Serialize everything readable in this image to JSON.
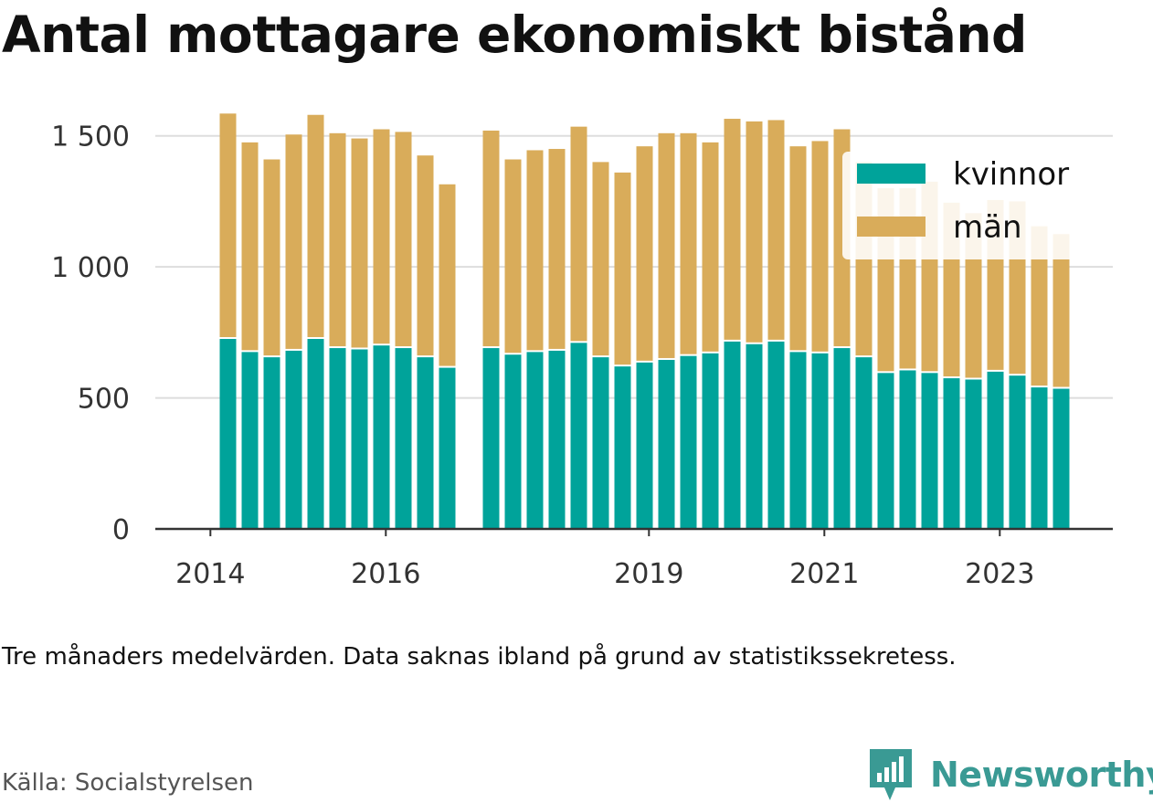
{
  "title": "Antal mottagare ekonomiskt bistånd",
  "note": "Tre månaders medelvärden. Data saknas ibland på grund av statistikssekretess.",
  "source": "Källa: Socialstyrelsen",
  "brand": {
    "name": "Newsworthy",
    "icon": "newsworthy-logo-icon",
    "color": "#3a9a94"
  },
  "chart_data": {
    "type": "bar",
    "stacked": true,
    "grid": true,
    "legend_position": "top-right",
    "ylim": [
      0,
      1600
    ],
    "y_ticks": [
      {
        "value": 0,
        "label": "0"
      },
      {
        "value": 500,
        "label": "500"
      },
      {
        "value": 1000,
        "label": "1 000"
      },
      {
        "value": 1500,
        "label": "1 500"
      }
    ],
    "x_ticks": [
      {
        "pos": 0.45,
        "label": "2014"
      },
      {
        "pos": 8.45,
        "label": "2016"
      },
      {
        "pos": 20.45,
        "label": "2019"
      },
      {
        "pos": 28.45,
        "label": "2021"
      },
      {
        "pos": 36.45,
        "label": "2023"
      }
    ],
    "categories": [
      "2014-Q2",
      "2014-Q3",
      "2014-Q4",
      "2015-Q1",
      "2015-Q2",
      "2015-Q3",
      "2015-Q4",
      "2016-Q1",
      "2016-Q2",
      "2016-Q3",
      "2016-Q4",
      "2017-Q1",
      "2017-Q2",
      "2017-Q3",
      "2017-Q4",
      "2018-Q1",
      "2018-Q2",
      "2018-Q3",
      "2018-Q4",
      "2019-Q1",
      "2019-Q2",
      "2019-Q3",
      "2019-Q4",
      "2020-Q1",
      "2020-Q2",
      "2020-Q3",
      "2020-Q4",
      "2021-Q1",
      "2021-Q2",
      "2021-Q3",
      "2021-Q4",
      "2022-Q1",
      "2022-Q2",
      "2022-Q3",
      "2022-Q4",
      "2023-Q1",
      "2023-Q2",
      "2023-Q3",
      "2023-Q4"
    ],
    "series": [
      {
        "name": "kvinnor",
        "color": "#00a39a",
        "values": [
          725,
          675,
          655,
          680,
          725,
          690,
          685,
          700,
          690,
          655,
          615,
          null,
          690,
          665,
          675,
          680,
          710,
          655,
          620,
          635,
          645,
          660,
          670,
          715,
          705,
          715,
          675,
          670,
          690,
          655,
          595,
          605,
          595,
          575,
          570,
          600,
          585,
          540,
          535
        ]
      },
      {
        "name": "män",
        "color": "#d9ac5a",
        "values": [
          860,
          800,
          755,
          825,
          855,
          820,
          805,
          825,
          825,
          770,
          700,
          null,
          830,
          745,
          770,
          770,
          825,
          745,
          740,
          825,
          865,
          850,
          805,
          850,
          850,
          845,
          785,
          810,
          835,
          745,
          705,
          695,
          730,
          670,
          635,
          655,
          665,
          615,
          590
        ]
      }
    ]
  }
}
